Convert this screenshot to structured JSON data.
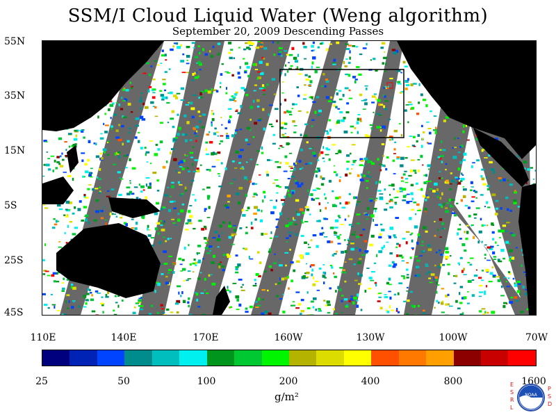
{
  "title": "SSM/I Cloud Liquid Water (Weng algorithm)",
  "subtitle": "September 20, 2009  Descending Passes",
  "map": {
    "lat_labels": [
      "55N",
      "35N",
      "15N",
      "5S",
      "25S",
      "45S"
    ],
    "lon_labels": [
      "110E",
      "140E",
      "170E",
      "160W",
      "130W",
      "100W",
      "70W"
    ],
    "land_color": "#000000",
    "no_data_color": "#686868",
    "ocean_color": "#ffffff"
  },
  "colorbar": {
    "colors": [
      "#00007f",
      "#0022b5",
      "#0044ff",
      "#008c8c",
      "#00bebe",
      "#00f0f0",
      "#00961e",
      "#00c832",
      "#00f500",
      "#b4b400",
      "#dcdc00",
      "#ffff00",
      "#ff5000",
      "#ff7800",
      "#ffa000",
      "#8c0000",
      "#c80000",
      "#ff0000"
    ],
    "labels": [
      "25",
      "50",
      "100",
      "200",
      "400",
      "800",
      "1600"
    ],
    "units": "g/m²"
  },
  "logo": {
    "left_text": "ESRL",
    "right_text": "PSD",
    "center_text": "NOAA"
  }
}
